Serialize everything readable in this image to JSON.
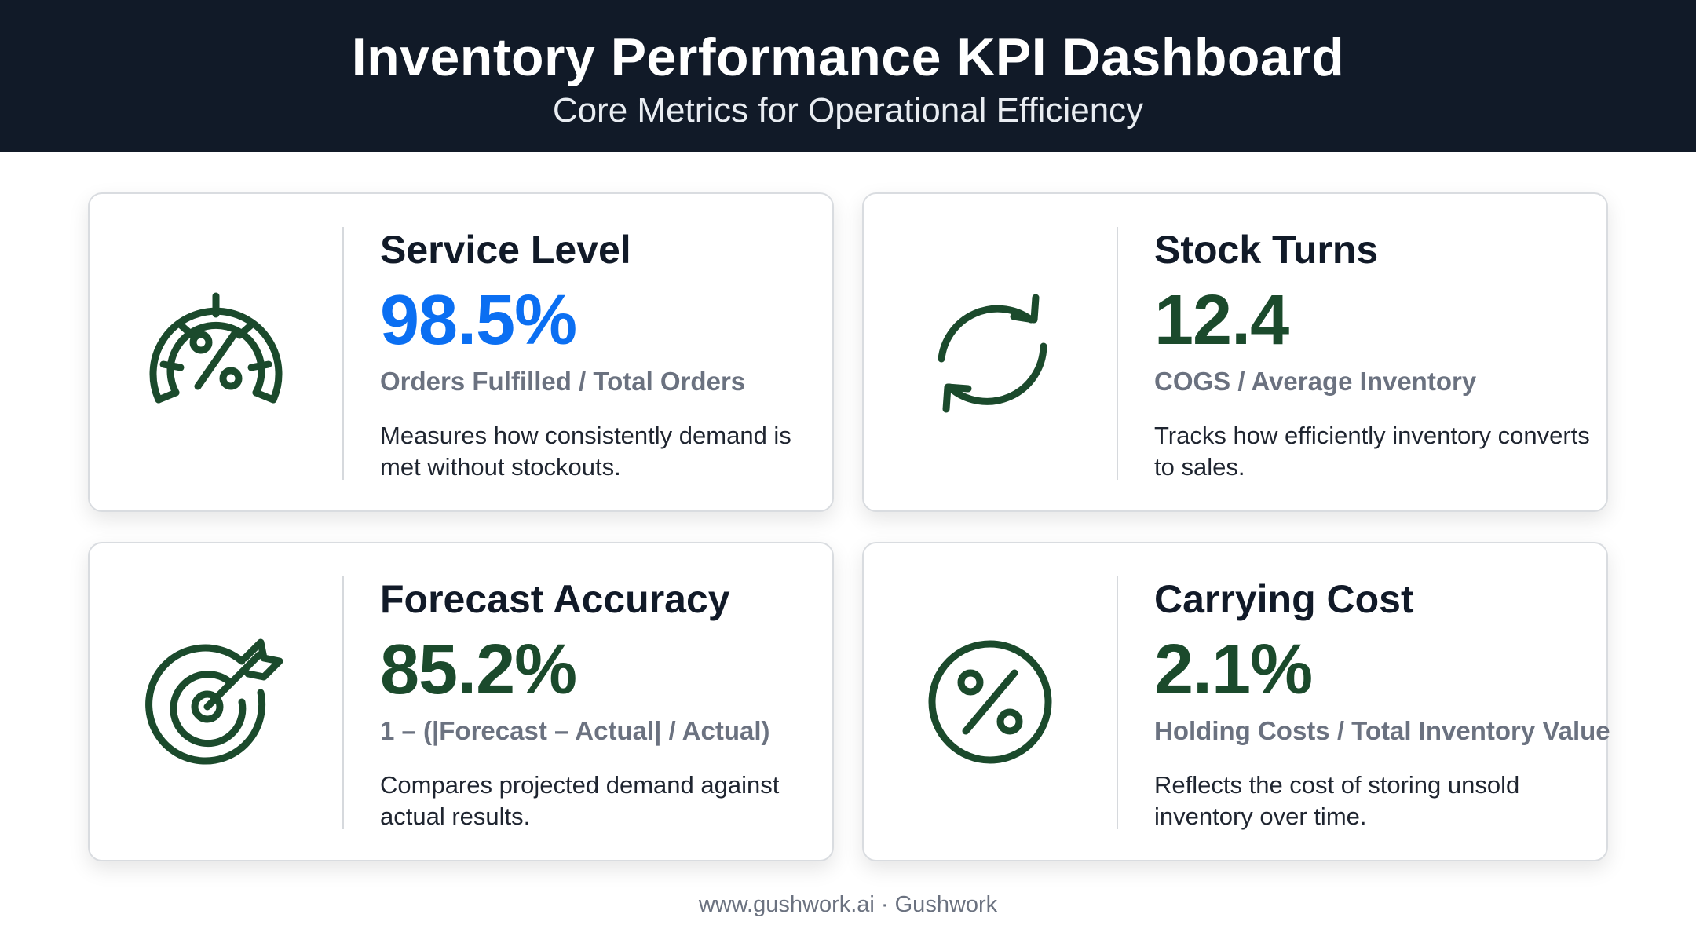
{
  "header": {
    "title": "Inventory Performance KPI Dashboard",
    "subtitle": "Core Metrics for Operational Efficiency"
  },
  "colors": {
    "header_bg": "#111a28",
    "accent_blue": "#0b6ff2",
    "accent_green": "#1b4a2c",
    "formula_gray": "#6b7280"
  },
  "cards": [
    {
      "title": "Service Level",
      "value": "98.5%",
      "value_color": "#0b6ff2",
      "formula": "Orders Fulfilled / Total Orders",
      "description": "Measures how consistently demand is met without stockouts.",
      "icon": "gauge-percent-icon"
    },
    {
      "title": "Stock Turns",
      "value": "12.4",
      "value_color": "#1b4a2c",
      "formula": "COGS / Average Inventory",
      "description": "Tracks how efficiently inventory converts to sales.",
      "icon": "refresh-cycle-icon"
    },
    {
      "title": "Forecast Accuracy",
      "value": "85.2%",
      "value_color": "#1b4a2c",
      "formula": "1 – (|Forecast – Actual| / Actual)",
      "description": "Compares projected demand against actual results.",
      "icon": "target-arrow-icon"
    },
    {
      "title": "Carrying Cost",
      "value": "2.1%",
      "value_color": "#1b4a2c",
      "formula": "Holding Costs / Total Inventory Value",
      "description": "Reflects the cost of storing unsold inventory over time.",
      "icon": "percent-circle-icon"
    }
  ],
  "footer": {
    "text": "www.gushwork.ai · Gushwork"
  }
}
